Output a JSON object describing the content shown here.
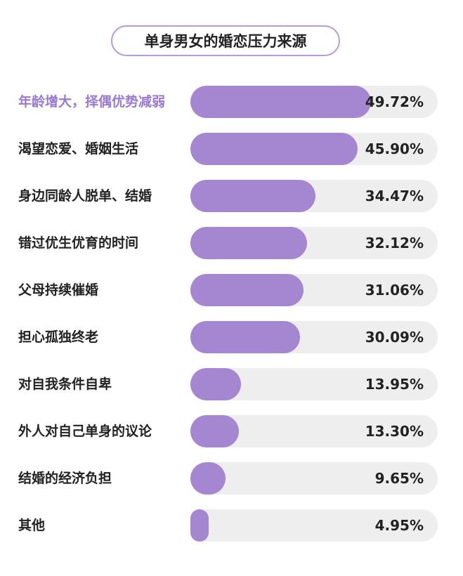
{
  "chart_data": {
    "type": "bar",
    "title": "单身男女的婚恋压力来源",
    "orientation": "horizontal",
    "categories": [
      "年龄增大，择偶优势减弱",
      "渴望恋爱、婚姻生活",
      "身边同龄人脱单、结婚",
      "错过优生优育的时间",
      "父母持续催婚",
      "担心孤独终老",
      "对自我条件自卑",
      "外人对自己单身的议论",
      "结婚的经济负担",
      "其他"
    ],
    "values": [
      49.72,
      45.9,
      34.47,
      32.12,
      31.06,
      30.09,
      13.95,
      13.3,
      9.65,
      4.95
    ],
    "value_labels": [
      "49.72%",
      "45.90%",
      "34.47%",
      "32.12%",
      "31.06%",
      "30.09%",
      "13.95%",
      "13.30%",
      "9.65%",
      "4.95%"
    ],
    "highlight_index": 0,
    "colors": {
      "bar": "#a586d1",
      "track": "#eeeeef",
      "highlight_label": "#9a7ad0",
      "title_border": "#b79ad8"
    }
  }
}
